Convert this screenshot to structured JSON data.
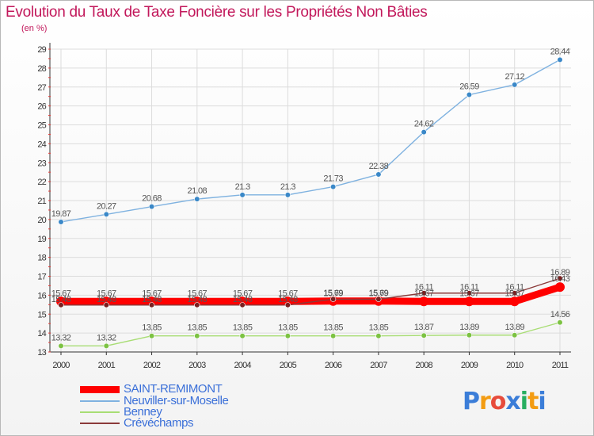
{
  "header": {
    "title": "Evolution du Taux de Taxe Foncière sur les Propriétés Non Bâties",
    "subtitle": "(en %)"
  },
  "logo": {
    "text": "Proxiti",
    "letters": [
      "P",
      "r",
      "o",
      "x",
      "i",
      "t",
      "i"
    ],
    "colors": [
      "#3b7dd8",
      "#f39c12",
      "#e74c3c",
      "#3b7dd8",
      "#27ae60",
      "#f39c12",
      "#3b7dd8"
    ]
  },
  "chart_data": {
    "type": "line",
    "title": "Evolution du Taux de Taxe Foncière sur les Propriétés Non Bâties",
    "ylabel": "(en %)",
    "xlabel": "",
    "ylim": [
      13,
      29
    ],
    "yticks": [
      13,
      14,
      15,
      16,
      17,
      18,
      19,
      20,
      21,
      22,
      23,
      24,
      25,
      26,
      27,
      28,
      29
    ],
    "categories": [
      "2000",
      "2001",
      "2002",
      "2003",
      "2004",
      "2005",
      "2006",
      "2007",
      "2008",
      "2009",
      "2010",
      "2011"
    ],
    "grid": true,
    "legend_position": "bottom-left",
    "series": [
      {
        "name": "SAINT-REMIMONT",
        "color": "#ff0000",
        "marker": "#ff0000",
        "emphasis": true,
        "values": [
          15.67,
          15.67,
          15.67,
          15.67,
          15.67,
          15.67,
          15.69,
          15.69,
          15.67,
          15.67,
          15.67,
          16.43
        ],
        "labels": [
          "15.67",
          "15.67",
          "15.67",
          "15.67",
          "15.67",
          "15.67",
          "15.69",
          "15.69",
          "15.67",
          "15.67",
          "15.67",
          "16.43"
        ]
      },
      {
        "name": "Neuviller-sur-Moselle",
        "color": "#7fb2e0",
        "marker": "#3a88c8",
        "values": [
          19.87,
          20.27,
          20.68,
          21.08,
          21.3,
          21.3,
          21.73,
          22.38,
          24.62,
          26.59,
          27.12,
          28.44
        ],
        "labels": [
          "19.87",
          "20.27",
          "20.68",
          "21.08",
          "21.3",
          "21.3",
          "21.73",
          "22.38",
          "24.62",
          "26.59",
          "27.12",
          "28.44"
        ]
      },
      {
        "name": "Benney",
        "color": "#a8dd74",
        "marker": "#7cc242",
        "values": [
          13.32,
          13.32,
          13.85,
          13.85,
          13.85,
          13.85,
          13.85,
          13.85,
          13.87,
          13.89,
          13.89,
          14.56
        ],
        "labels": [
          "13.32",
          "13.32",
          "13.85",
          "13.85",
          "13.85",
          "13.85",
          "13.85",
          "13.85",
          "13.87",
          "13.89",
          "13.89",
          "14.56"
        ]
      },
      {
        "name": "Crévéchamps",
        "color": "#8b3a3a",
        "marker": "#7a2020",
        "values": [
          15.48,
          15.48,
          15.48,
          15.48,
          15.48,
          15.48,
          15.79,
          15.79,
          16.11,
          16.11,
          16.11,
          16.89
        ],
        "labels": [
          "15.48",
          "15.48",
          "15.48",
          "15.48",
          "15.48",
          "15.48",
          "15.79",
          "15.79",
          "16.11",
          "16.11",
          "16.11",
          "16.89"
        ]
      }
    ]
  }
}
